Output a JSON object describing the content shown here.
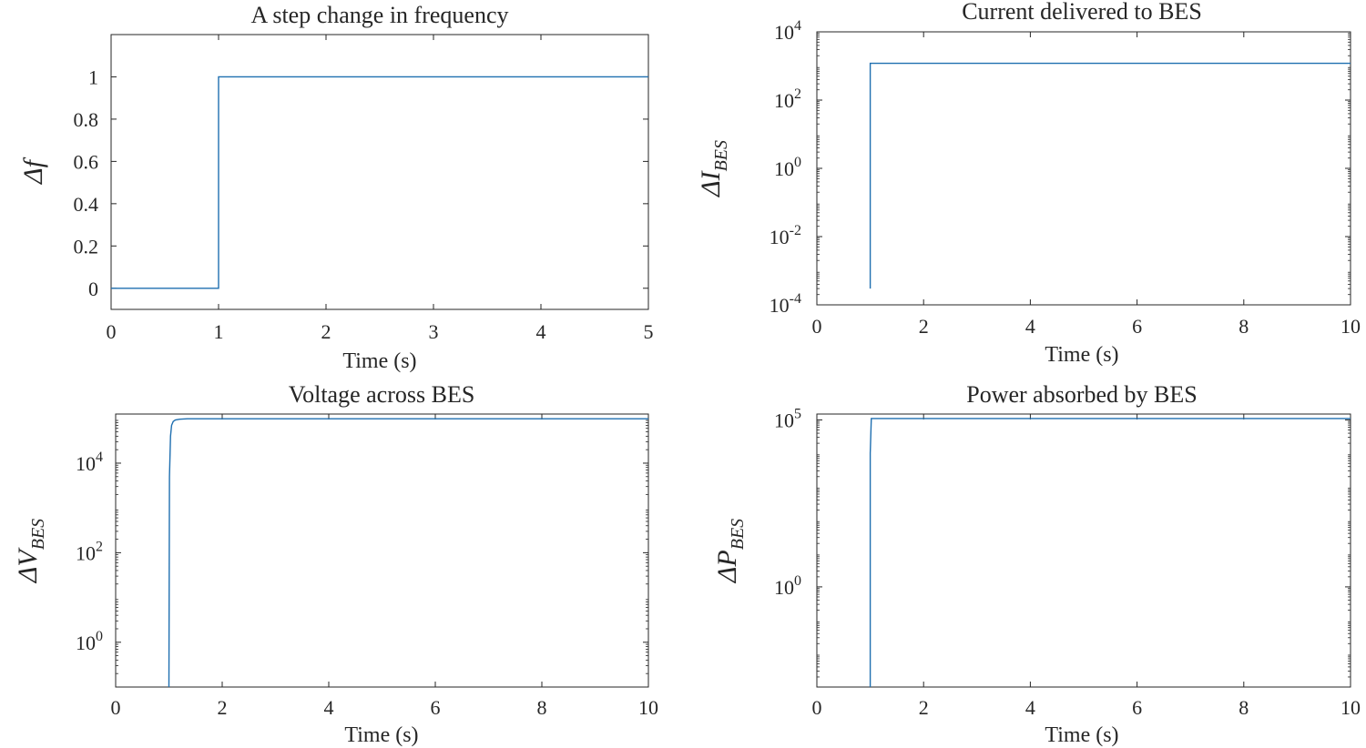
{
  "colors": {
    "line": "#1f6fb0",
    "axis": "#262626",
    "background": "#ffffff"
  },
  "chart_data": [
    {
      "type": "line",
      "title": "A step change in frequency",
      "xlabel": "Time (s)",
      "ylabel": "Δf",
      "ylabel_sub": "",
      "yscale": "linear",
      "xlim": [
        0,
        5
      ],
      "ylim": [
        -0.1,
        1.2
      ],
      "xticks": [
        0,
        1,
        2,
        3,
        4,
        5
      ],
      "xticklabels": [
        "0",
        "1",
        "2",
        "3",
        "4",
        "5"
      ],
      "yticks": [
        0,
        0.2,
        0.4,
        0.6,
        0.8,
        1
      ],
      "yticklabels": [
        "0",
        "0.2",
        "0.4",
        "0.6",
        "0.8",
        "1"
      ],
      "grid": false,
      "series": [
        {
          "x": [
            0,
            1,
            1,
            5
          ],
          "y": [
            0,
            0,
            1,
            1
          ]
        }
      ]
    },
    {
      "type": "line",
      "title": "Current delivered to BES",
      "xlabel": "Time (s)",
      "ylabel": "ΔI",
      "ylabel_sub": "BES",
      "yscale": "log",
      "xlim": [
        0,
        10
      ],
      "ylim": [
        0.0001,
        10000
      ],
      "xticks": [
        0,
        2,
        4,
        6,
        8,
        10
      ],
      "xticklabels": [
        "0",
        "2",
        "4",
        "6",
        "8",
        "10"
      ],
      "yticks": [
        0.0001,
        0.01,
        1,
        100,
        10000
      ],
      "ytickbases": [
        "10",
        "10",
        "10",
        "10",
        "10"
      ],
      "ytickexps": [
        "-4",
        "-2",
        "0",
        "2",
        "4"
      ],
      "grid": false,
      "series": [
        {
          "x": [
            1,
            1,
            10
          ],
          "y": [
            0.0003,
            1200,
            1200
          ]
        }
      ]
    },
    {
      "type": "line",
      "title": "Voltage across BES",
      "xlabel": "Time (s)",
      "ylabel": "ΔV",
      "ylabel_sub": "BES",
      "yscale": "log",
      "xlim": [
        0,
        10
      ],
      "ylim": [
        0.1,
        125000
      ],
      "xticks": [
        0,
        2,
        4,
        6,
        8,
        10
      ],
      "xticklabels": [
        "0",
        "2",
        "4",
        "6",
        "8",
        "10"
      ],
      "yticks": [
        1,
        100,
        10000
      ],
      "ytickbases": [
        "10",
        "10",
        "10"
      ],
      "ytickexps": [
        "0",
        "2",
        "4"
      ],
      "grid": false,
      "series": [
        {
          "x": [
            1,
            1.01,
            1.03,
            1.05,
            1.08,
            1.12,
            1.2,
            1.35,
            10
          ],
          "y": [
            0.1,
            5000,
            40000,
            70000,
            85000,
            92000,
            96000,
            98000,
            98000
          ]
        }
      ]
    },
    {
      "type": "line",
      "title": "Power absorbed by BES",
      "xlabel": "Time (s)",
      "ylabel": "ΔP",
      "ylabel_sub": "BES",
      "yscale": "log",
      "xlim": [
        0,
        10
      ],
      "ylim": [
        0.001,
        150000
      ],
      "xticks": [
        0,
        2,
        4,
        6,
        8,
        10
      ],
      "xticklabels": [
        "0",
        "2",
        "4",
        "6",
        "8",
        "10"
      ],
      "yticks": [
        1,
        100000
      ],
      "ytickbases": [
        "10",
        "10"
      ],
      "ytickexps": [
        "0",
        "5"
      ],
      "grid": false,
      "series": [
        {
          "x": [
            1,
            1,
            1.02,
            10
          ],
          "y": [
            0.001,
            10000,
            110000,
            110000
          ]
        }
      ]
    }
  ]
}
